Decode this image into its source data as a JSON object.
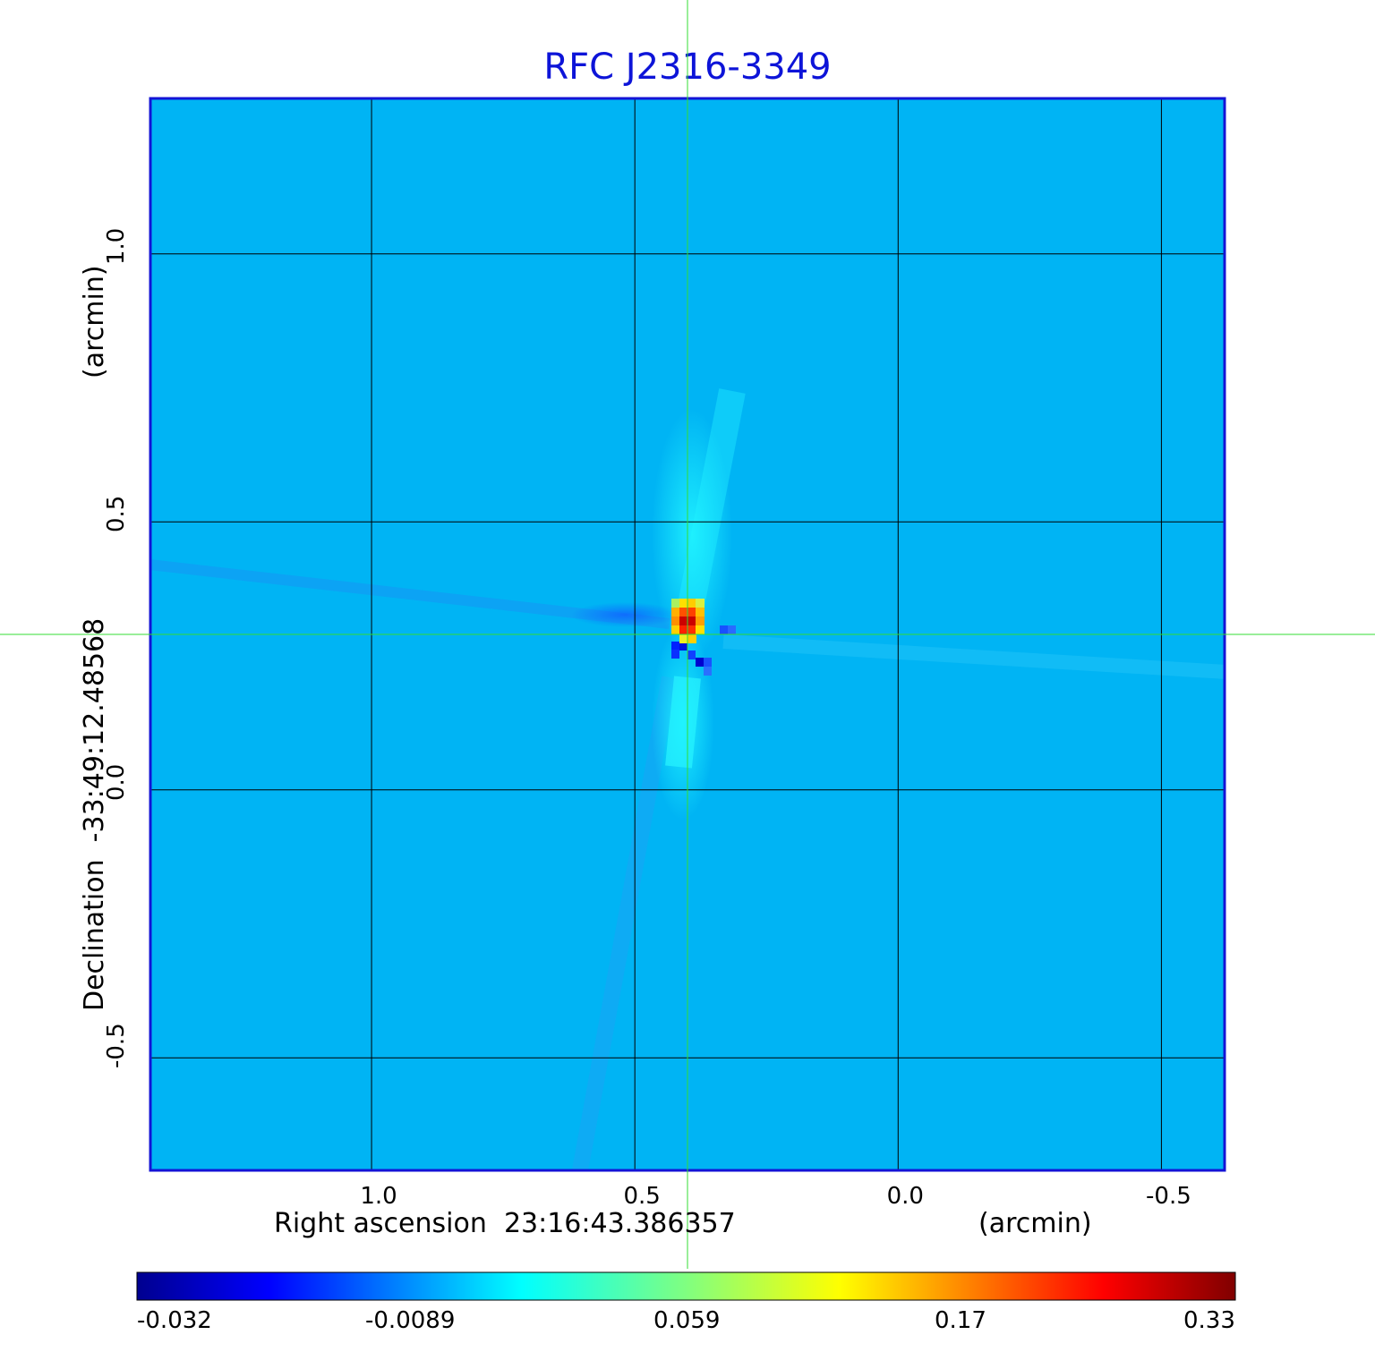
{
  "chart_data": {
    "type": "heatmap",
    "title": "RFC J2316-3349",
    "xlabel": "Right ascension",
    "x_center": "23:16:43.386357",
    "x_unit": "(arcmin)",
    "ylabel": "Declination",
    "y_center": "-33:49:12.48568",
    "y_unit": "(arcmin)",
    "xlim": [
      1.42,
      -0.62
    ],
    "ylim": [
      -0.71,
      1.29
    ],
    "x_ticks": [
      1.0,
      0.5,
      0.0,
      -0.5
    ],
    "x_tick_labels": [
      "1.0",
      "0.5",
      "0.0",
      "-0.5"
    ],
    "y_ticks": [
      1.0,
      0.5,
      0.0,
      -0.5
    ],
    "y_tick_labels": [
      "1.0",
      "0.5",
      "0.0",
      "-0.5"
    ],
    "grid": true,
    "crosshair": {
      "x": 0.4,
      "y": 0.29
    },
    "peak": {
      "x": 0.4,
      "y": 0.31,
      "value": 0.33
    },
    "colorscale": {
      "name": "jet",
      "tick_values": [
        -0.032,
        -0.0089,
        0.059,
        0.17,
        0.33
      ],
      "tick_labels": [
        "-0.032",
        "-0.0089",
        "0.059",
        "0.17",
        "0.33"
      ],
      "min": -0.032,
      "max": 0.33
    },
    "features": [
      {
        "type": "positive_core",
        "x": 0.4,
        "y": 0.31,
        "value": 0.33
      },
      {
        "type": "negative_lobe",
        "x": 0.41,
        "y": 0.25,
        "value": -0.032
      },
      {
        "type": "negative_lobe",
        "x": 0.36,
        "y": 0.26,
        "value": -0.032
      },
      {
        "type": "negative_lobe",
        "x": 0.35,
        "y": 0.28,
        "value": -0.02
      }
    ],
    "colors": {
      "title": "#0d14d8",
      "frame": "#1414d6",
      "background": "#00b4f4",
      "crosshair": "#33dd33"
    }
  }
}
